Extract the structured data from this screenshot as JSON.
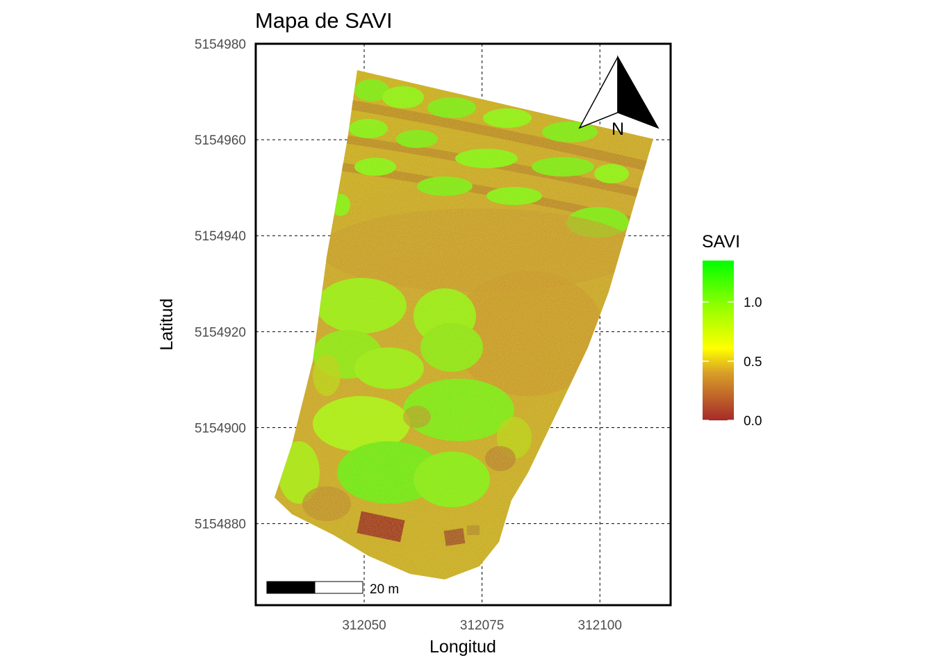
{
  "map": {
    "title": "Mapa de SAVI",
    "x_axis": {
      "label": "Longitud",
      "ticks": [
        312050,
        312075,
        312100
      ],
      "range": [
        312027,
        312115
      ]
    },
    "y_axis": {
      "label": "Latitud",
      "ticks": [
        5154880,
        5154900,
        5154920,
        5154940,
        5154960,
        5154980
      ],
      "range": [
        5154863,
        5154980
      ]
    },
    "legend": {
      "title": "SAVI",
      "ticks": [
        {
          "value": 0.0,
          "label": "0.0"
        },
        {
          "value": 0.5,
          "label": "0.5"
        },
        {
          "value": 1.0,
          "label": "1.0"
        }
      ],
      "range": [
        0.0,
        1.35
      ],
      "colors": [
        "#a62a2a",
        "#d9a028",
        "#ffff00",
        "#99ff00",
        "#00ff00"
      ]
    },
    "north_arrow": {
      "label": "N"
    },
    "scale_bar": {
      "label": "20 m"
    },
    "grid": "dashed"
  }
}
